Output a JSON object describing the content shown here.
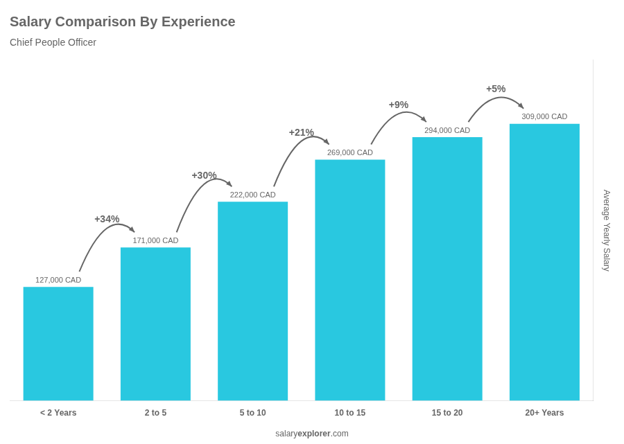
{
  "chart_data": {
    "type": "bar",
    "title": "Salary Comparison By Experience",
    "subtitle": "Chief People Officer",
    "categories": [
      "< 2 Years",
      "2 to 5",
      "5 to 10",
      "10 to 15",
      "15 to 20",
      "20+ Years"
    ],
    "values": [
      127000,
      171000,
      222000,
      269000,
      294000,
      309000
    ],
    "value_labels": [
      "127,000 CAD",
      "171,000 CAD",
      "222,000 CAD",
      "269,000 CAD",
      "294,000 CAD",
      "309,000 CAD"
    ],
    "data_labels": true,
    "annotations": [
      "+34%",
      "+30%",
      "+21%",
      "+9%",
      "+5%"
    ],
    "ylabel": "Average Yearly Salary",
    "footer": [
      "salary",
      "explorer",
      ".com"
    ],
    "color": "#29c8e0",
    "ylim": [
      0,
      380000
    ],
    "tick_labels": "x",
    "grid": false
  }
}
